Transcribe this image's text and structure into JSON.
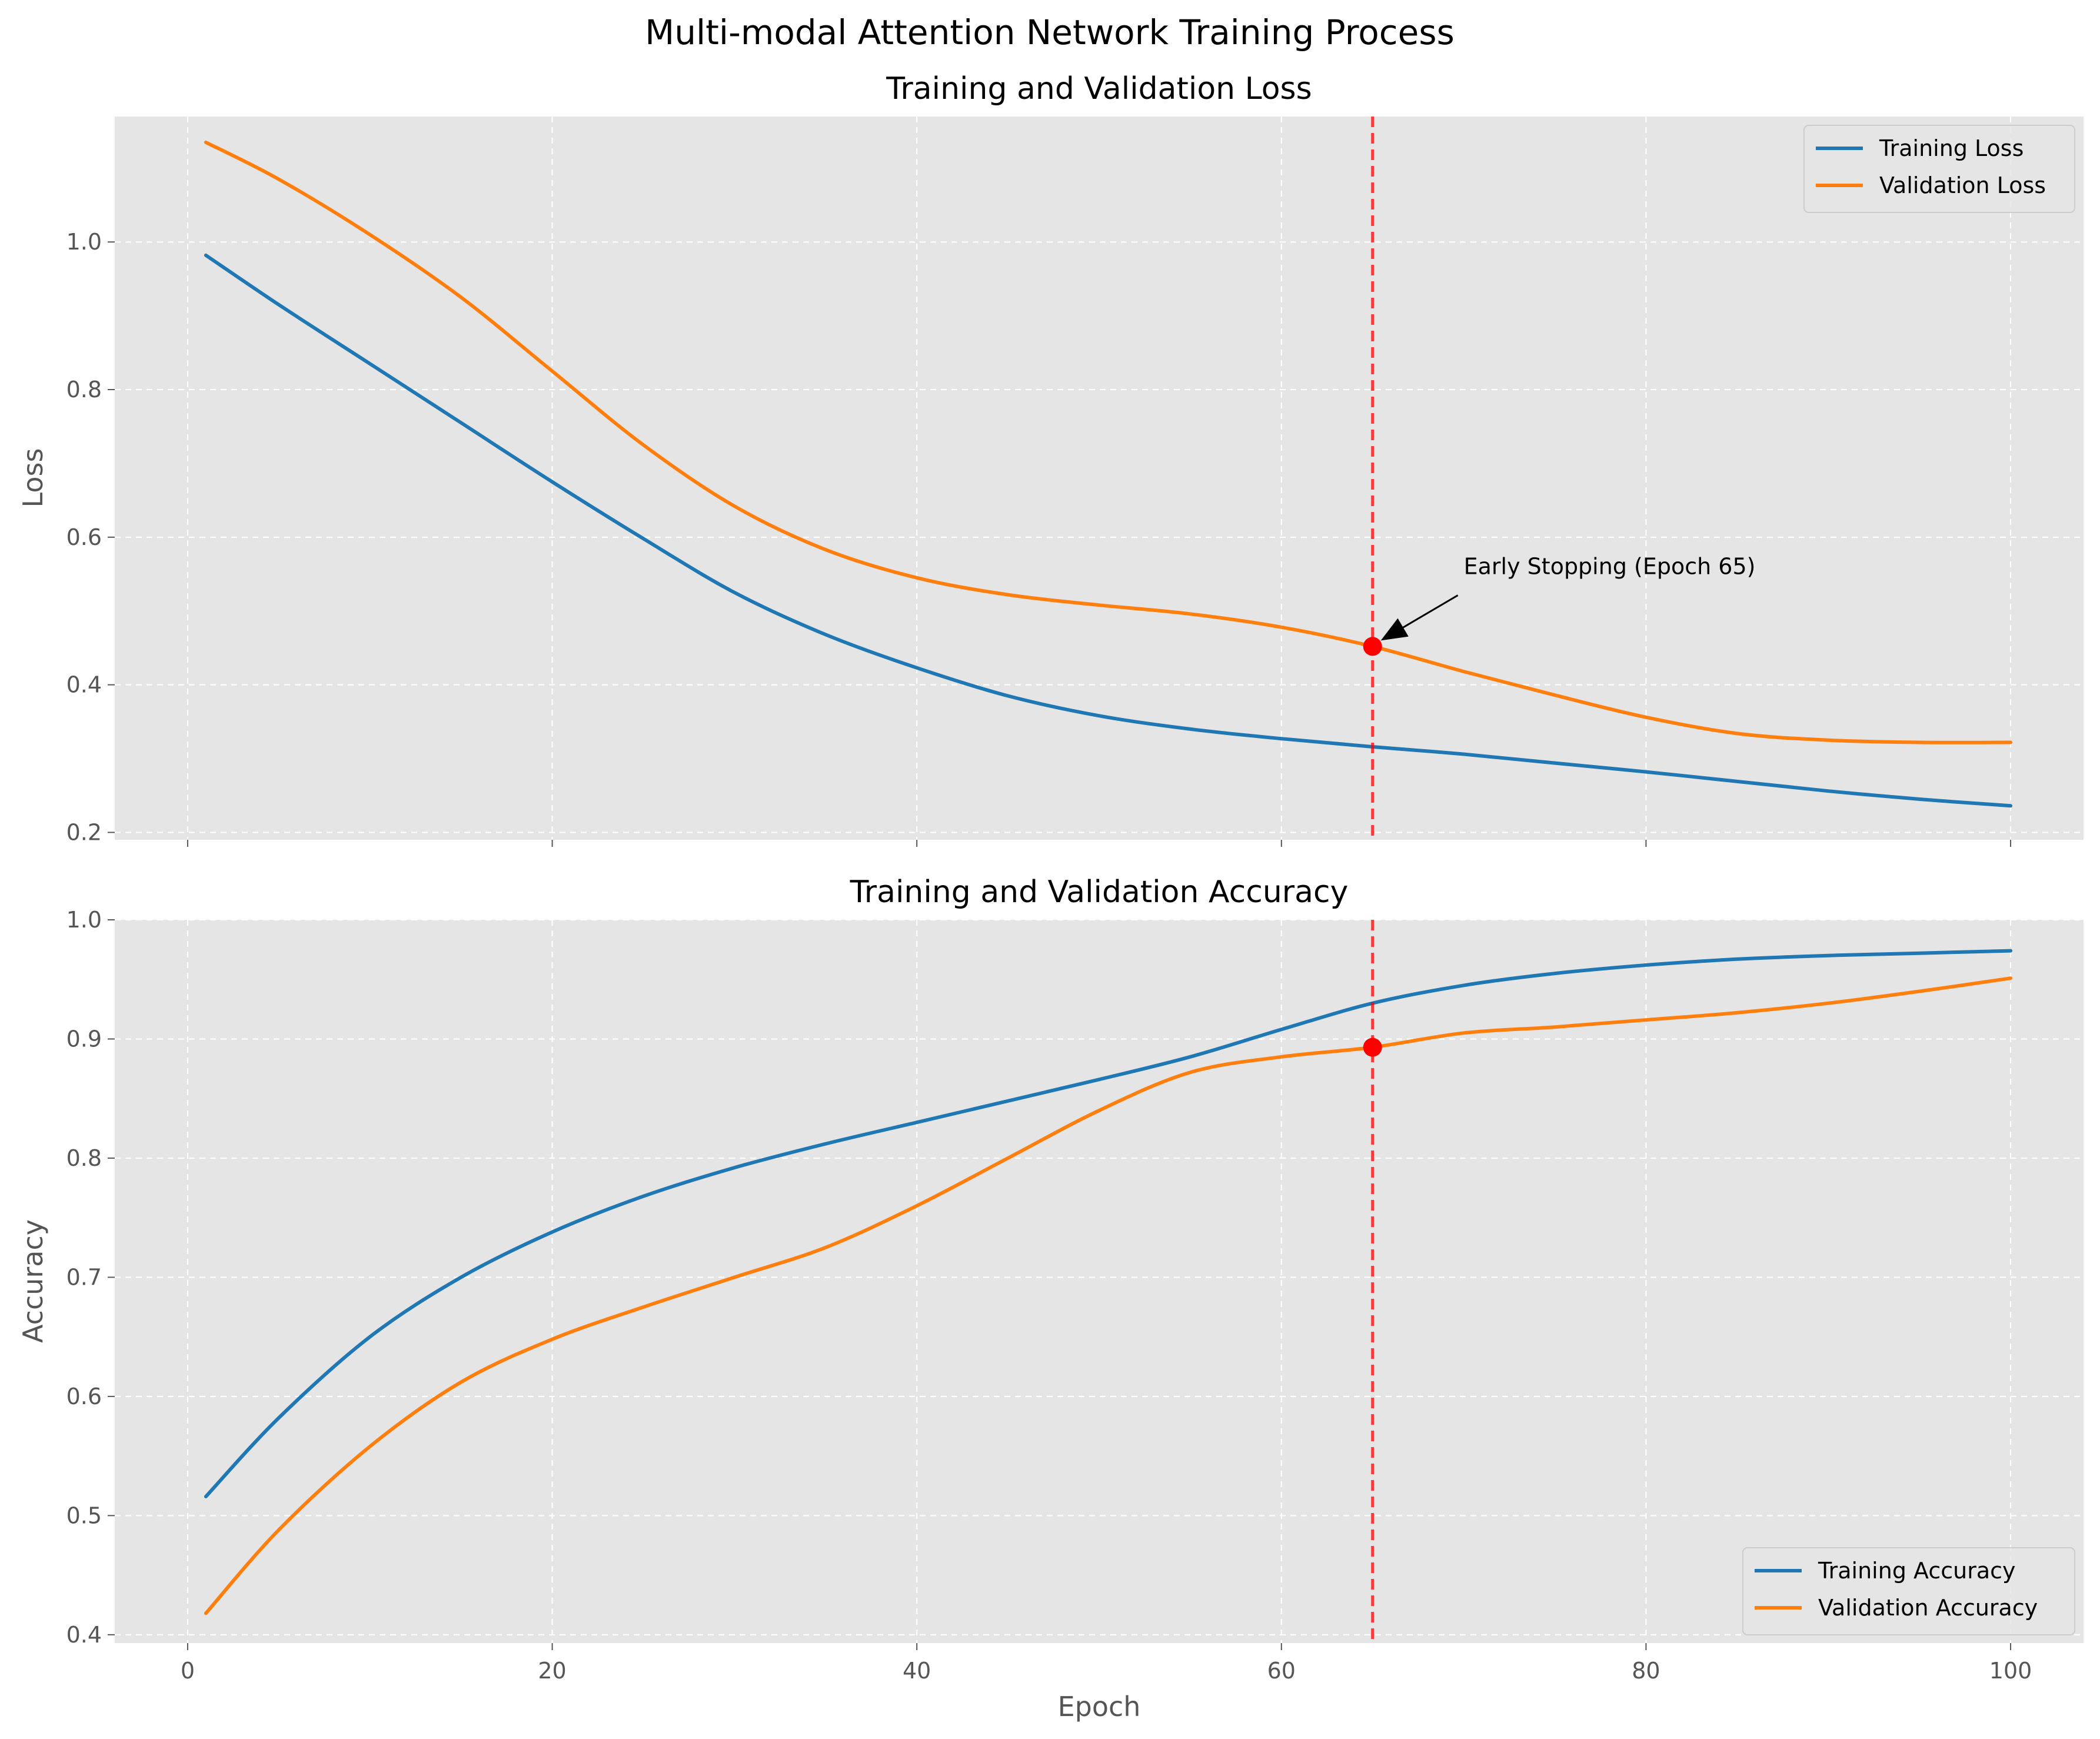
{
  "figure": {
    "suptitle": "Multi-modal Attention Network Training Process",
    "colors": {
      "background": "#ffffff",
      "axes_face": "#e5e5e5",
      "grid": "#ffffff",
      "training": "#1f77b4",
      "validation": "#ff7f0e",
      "early_stop": "#ff0000",
      "text": "#555555"
    }
  },
  "chart_data": [
    {
      "type": "line",
      "title": "Training and Validation Loss",
      "xlabel": "",
      "ylabel": "Loss",
      "xlim": [
        -4,
        104
      ],
      "ylim": [
        0.19,
        1.17
      ],
      "xticks": [
        0,
        20,
        40,
        60,
        80,
        100
      ],
      "xtick_labels_visible": false,
      "yticks": [
        0.2,
        0.4,
        0.6,
        0.8,
        1.0
      ],
      "ytick_labels": [
        "0.2",
        "0.4",
        "0.6",
        "0.8",
        "1.0"
      ],
      "grid": true,
      "legend": "upper-right",
      "x": [
        1,
        5,
        10,
        15,
        20,
        25,
        30,
        35,
        40,
        45,
        50,
        55,
        60,
        65,
        70,
        75,
        80,
        85,
        90,
        95,
        100
      ],
      "series": [
        {
          "name": "Training Loss",
          "color_key": "training",
          "values": [
            0.982,
            0.915,
            0.835,
            0.755,
            0.675,
            0.598,
            0.525,
            0.468,
            0.423,
            0.385,
            0.358,
            0.34,
            0.327,
            0.316,
            0.306,
            0.294,
            0.282,
            0.269,
            0.256,
            0.245,
            0.236
          ]
        },
        {
          "name": "Validation Loss",
          "color_key": "validation",
          "values": [
            1.135,
            1.085,
            1.01,
            0.925,
            0.825,
            0.725,
            0.642,
            0.583,
            0.545,
            0.522,
            0.508,
            0.496,
            0.478,
            0.452,
            0.418,
            0.386,
            0.356,
            0.334,
            0.325,
            0.322,
            0.322
          ]
        }
      ],
      "early_stop": {
        "epoch": 65,
        "value": 0.452
      },
      "annotation": {
        "text": "Early Stopping (Epoch 65)",
        "x": 70,
        "y": 0.55
      }
    },
    {
      "type": "line",
      "title": "Training and Validation Accuracy",
      "xlabel": "Epoch",
      "ylabel": "Accuracy",
      "xlim": [
        -4,
        104
      ],
      "ylim": [
        0.393,
        1.0
      ],
      "xticks": [
        0,
        20,
        40,
        60,
        80,
        100
      ],
      "xtick_labels": [
        "0",
        "20",
        "40",
        "60",
        "80",
        "100"
      ],
      "yticks": [
        0.4,
        0.5,
        0.6,
        0.7,
        0.8,
        0.9,
        1.0
      ],
      "ytick_labels": [
        "0.4",
        "0.5",
        "0.6",
        "0.7",
        "0.8",
        "0.9",
        "1.0"
      ],
      "grid": true,
      "legend": "lower-right",
      "x": [
        1,
        5,
        10,
        15,
        20,
        25,
        30,
        35,
        40,
        45,
        50,
        55,
        60,
        65,
        70,
        75,
        80,
        85,
        90,
        95,
        100
      ],
      "series": [
        {
          "name": "Training Accuracy",
          "color_key": "training",
          "values": [
            0.516,
            0.582,
            0.65,
            0.7,
            0.738,
            0.768,
            0.792,
            0.812,
            0.83,
            0.848,
            0.866,
            0.885,
            0.908,
            0.93,
            0.945,
            0.955,
            0.962,
            0.967,
            0.97,
            0.972,
            0.974
          ]
        },
        {
          "name": "Validation Accuracy",
          "color_key": "validation",
          "values": [
            0.418,
            0.488,
            0.558,
            0.612,
            0.648,
            0.675,
            0.7,
            0.725,
            0.76,
            0.8,
            0.84,
            0.872,
            0.885,
            0.893,
            0.905,
            0.91,
            0.916,
            0.922,
            0.93,
            0.94,
            0.951
          ]
        }
      ],
      "early_stop": {
        "epoch": 65,
        "value": 0.893
      }
    }
  ]
}
